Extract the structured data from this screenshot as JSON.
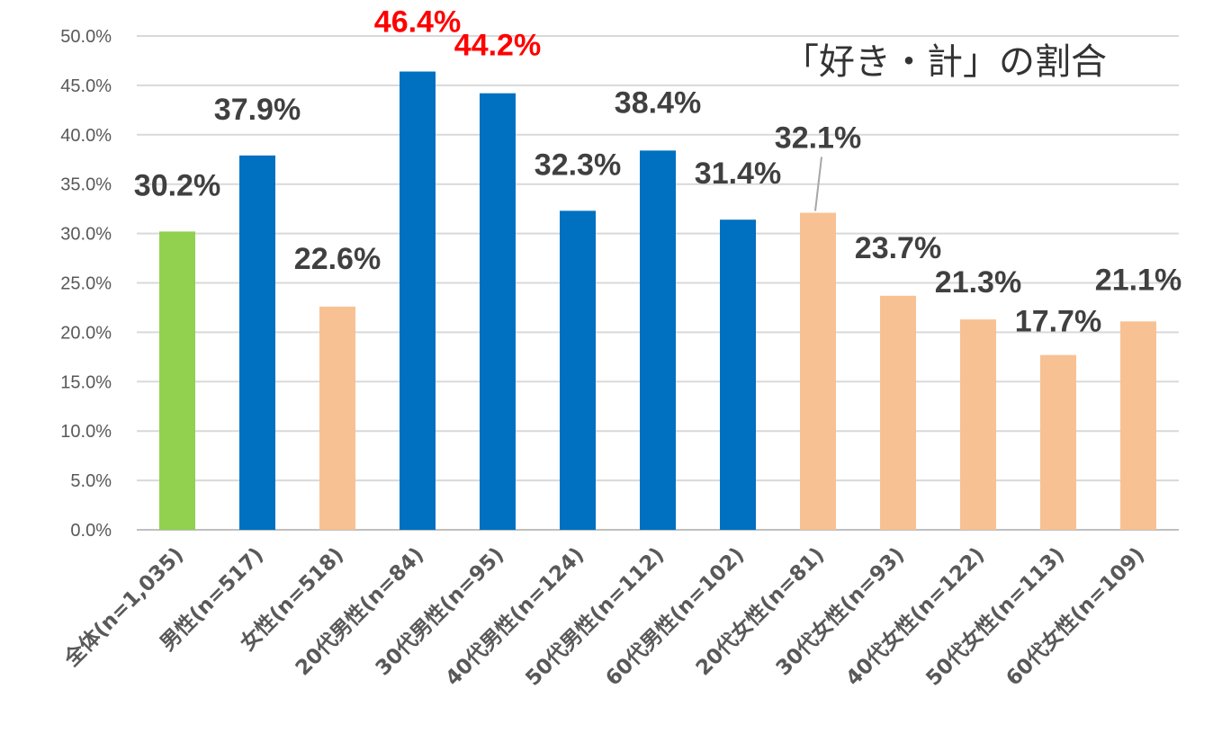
{
  "chart_data": {
    "type": "bar",
    "title": "「好き・計」の割合",
    "categories": [
      "全体(n=1,035)",
      "男性(n=517)",
      "女性(n=518)",
      "20代男性(n=84)",
      "30代男性(n=95)",
      "40代男性(n=124)",
      "50代男性(n=112)",
      "60代男性(n=102)",
      "20代女性(n=81)",
      "30代女性(n=93)",
      "40代女性(n=122)",
      "50代女性(n=113)",
      "60代女性(n=109)"
    ],
    "values": [
      30.2,
      37.9,
      22.6,
      46.4,
      44.2,
      32.3,
      38.4,
      31.4,
      32.1,
      23.7,
      21.3,
      17.7,
      21.1
    ],
    "data_labels": [
      "30.2%",
      "37.9%",
      "22.6%",
      "46.4%",
      "44.2%",
      "32.3%",
      "38.4%",
      "31.4%",
      "32.1%",
      "23.7%",
      "21.3%",
      "17.7%",
      "21.1%"
    ],
    "y_tick_labels": [
      "0.0%",
      "5.0%",
      "10.0%",
      "15.0%",
      "20.0%",
      "25.0%",
      "30.0%",
      "35.0%",
      "40.0%",
      "45.0%",
      "50.0%"
    ],
    "ylim": [
      0,
      50
    ],
    "y_tick_step": 5,
    "grid": true,
    "legend": "none",
    "bar_colors": [
      "#92d050",
      "#0070c0",
      "#f8c193",
      "#0070c0",
      "#0070c0",
      "#0070c0",
      "#0070c0",
      "#0070c0",
      "#f8c193",
      "#f8c193",
      "#f8c193",
      "#f8c193",
      "#f8c193"
    ],
    "label_colors": [
      "#404040",
      "#404040",
      "#404040",
      "#ff0000",
      "#ff0000",
      "#404040",
      "#404040",
      "#404040",
      "#404040",
      "#404040",
      "#404040",
      "#404040",
      "#404040"
    ],
    "gridline_color": "#d9d9d9"
  }
}
